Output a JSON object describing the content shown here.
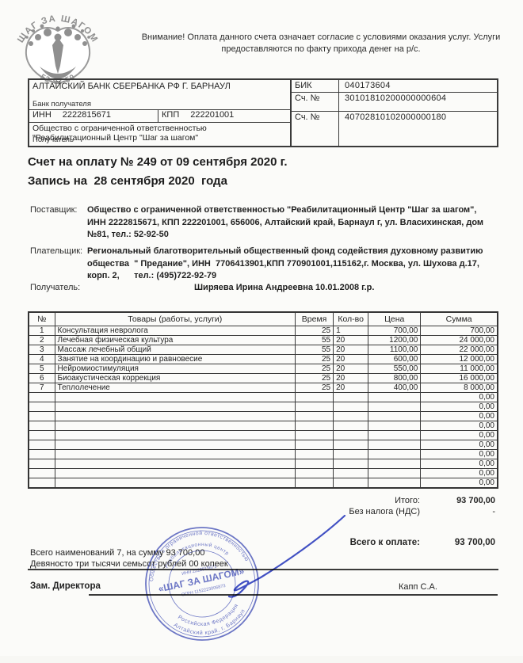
{
  "logo": {
    "arc_top": "ШАГ ЗА ШАГОМ",
    "arc_bottom": "52-92-50"
  },
  "warning": "Внимание! Оплата данного счета означает согласие с условиями оказания услуг. Услуги\nпредоставляются по факту прихода денег на р/с.",
  "bank_table": {
    "bank_name": "АЛТАЙСКИЙ БАНК СБЕРБАНКА РФ Г. БАРНАУЛ",
    "bank_label": "Банк получателя",
    "bik_label": "БИК",
    "bik": "040173604",
    "corr_account_label": "Сч. №",
    "corr_account": "30101810200000000604",
    "inn_label": "ИНН",
    "inn": "2222815671",
    "kpp_label": "КПП",
    "kpp": "222201001",
    "account_label": "Сч. №",
    "account": "40702810102000000180",
    "recipient_org": "Общество с ограниченной ответственностью\n\"Реабилитационный Центр \"Шаг за шагом\"",
    "recipient_label": "Получатель"
  },
  "title": "Счет на оплату № 249 от 09 сентября 2020 г.",
  "subtitle": "Запись на  28 сентября 2020  года",
  "parties": {
    "supplier_label": "Поставщик:",
    "supplier": "Общество с ограниченной ответственностью \"Реабилитационный Центр \"Шаг за шагом\",\nИНН 2222815671, КПП 222201001, 656006, Алтайский край, Барнаул г, ул. Власихинская, дом\n№81, тел.: 52-92-50",
    "payer_label": "Плательщик:",
    "payer": "Региональный благотворительный общественный фонд содействия духовному развитию\nобщества  \" Предание\", ИНН  7706413901,КПП 770901001,115162,г. Москва, ул. Шухова д.17,\nкорп. 2,      тел.: (495)722-92-79",
    "beneficiary_label": "Получатель:",
    "beneficiary": "Ширяева Ирина Андреевна 10.01.2008 г.р."
  },
  "items_table": {
    "headers": [
      "№",
      "Товары (работы, услуги)",
      "Время",
      "Кол-во",
      "Цена",
      "Сумма"
    ],
    "rows": [
      {
        "num": "1",
        "name": "Консультация невролога",
        "time": "25",
        "qty": "1",
        "price": "700,00",
        "sum": "700,00"
      },
      {
        "num": "2",
        "name": "Лечебная физическая культура",
        "time": "55",
        "qty": "20",
        "price": "1200,00",
        "sum": "24 000,00"
      },
      {
        "num": "3",
        "name": "Массаж лечебный общий",
        "time": "55",
        "qty": "20",
        "price": "1100,00",
        "sum": "22 000,00"
      },
      {
        "num": "4",
        "name": "Занятие на координацию и равновесие",
        "time": "25",
        "qty": "20",
        "price": "600,00",
        "sum": "12 000,00"
      },
      {
        "num": "5",
        "name": "Нейромиостимуляция",
        "time": "25",
        "qty": "20",
        "price": "550,00",
        "sum": "11 000,00"
      },
      {
        "num": "6",
        "name": "Биоакустическая коррекция",
        "time": "25",
        "qty": "20",
        "price": "800,00",
        "sum": "16 000,00"
      },
      {
        "num": "7",
        "name": "Теплолечение",
        "time": "25",
        "qty": "20",
        "price": "400,00",
        "sum": "8 000,00"
      }
    ],
    "empty_row_count": 10,
    "empty_row_sum": "0,00"
  },
  "totals": {
    "total_label": "Итого:",
    "total": "93 700,00",
    "no_tax_label": "Без налога (НДС)",
    "no_tax_value": "-",
    "due_label": "Всего к оплате:",
    "due": "93 700,00"
  },
  "summary": {
    "items_count_line": "Всего наименований 7, на сумму 93 700,00",
    "amount_in_words": "Девяносто три тысячи семьсот рублей 00 копеек"
  },
  "signature": {
    "position_label": "Зам. Директора",
    "name": "Капп С.А."
  },
  "stamp": {
    "arc_top_outer": "Общество с ограниченной ответственностью",
    "arc_top_inner": "Реабилитационный центр",
    "center": "«ШАГ ЗА ШАГОМ»",
    "inn_line": "ИНН 2222815671",
    "ogrn_line": "ОГРН 1152223006873",
    "arc_bottom_inner": "Российская Федерация",
    "arc_bottom_outer": "Алтайский край, г. Барнаул"
  },
  "colors": {
    "stamp_blue": "#4a57bd",
    "signature_blue": "#2d3ec2",
    "logo_gray": "#909090",
    "border_dark": "#3a3a3a"
  }
}
